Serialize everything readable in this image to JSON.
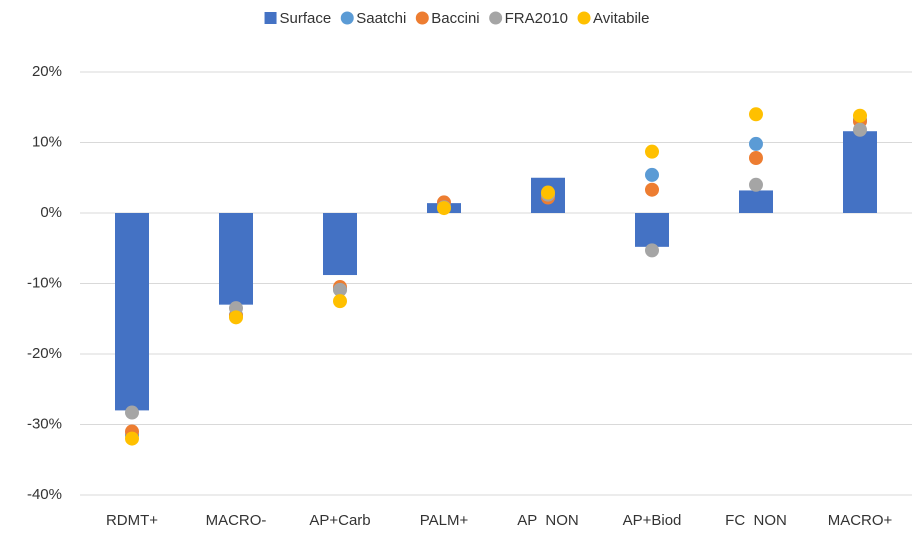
{
  "chart_data": {
    "type": "bar",
    "categories": [
      "RDMT+",
      "MACRO-",
      "AP+Carb",
      "PALM+",
      "AP  NON",
      "AP+Biod",
      "FC  NON",
      "MACRO+"
    ],
    "series": [
      {
        "name": "Surface",
        "type": "bar",
        "color": "#4472c4",
        "values": [
          -28.0,
          -13.0,
          -8.8,
          1.4,
          5.0,
          -4.8,
          3.2,
          11.6
        ]
      },
      {
        "name": "Saatchi",
        "type": "scatter",
        "color": "#5b9bd5",
        "values": [
          -31.5,
          -14.5,
          -10.8,
          1.0,
          2.5,
          5.4,
          9.8,
          13.2
        ]
      },
      {
        "name": "Baccini",
        "type": "scatter",
        "color": "#ed7d31",
        "values": [
          -31.0,
          -14.6,
          -10.5,
          1.5,
          2.2,
          3.3,
          7.8,
          13.0
        ]
      },
      {
        "name": "FRA2010",
        "type": "scatter",
        "color": "#a5a5a5",
        "values": [
          -28.3,
          -13.5,
          -10.9,
          0.8,
          2.6,
          -5.3,
          4.0,
          11.8
        ]
      },
      {
        "name": "Avitabile",
        "type": "scatter",
        "color": "#ffc000",
        "values": [
          -32.0,
          -14.8,
          -12.5,
          0.7,
          2.9,
          8.7,
          14.0,
          13.8
        ]
      }
    ],
    "ylim": [
      -40,
      20
    ],
    "yticks": [
      {
        "value": -40,
        "label": "-40%"
      },
      {
        "value": -30,
        "label": "-30%"
      },
      {
        "value": -20,
        "label": "-20%"
      },
      {
        "value": -10,
        "label": "-10%"
      },
      {
        "value": 0,
        "label": "0%"
      },
      {
        "value": 10,
        "label": "10%"
      },
      {
        "value": 20,
        "label": "20%"
      }
    ],
    "grid": true,
    "legend": "top"
  }
}
